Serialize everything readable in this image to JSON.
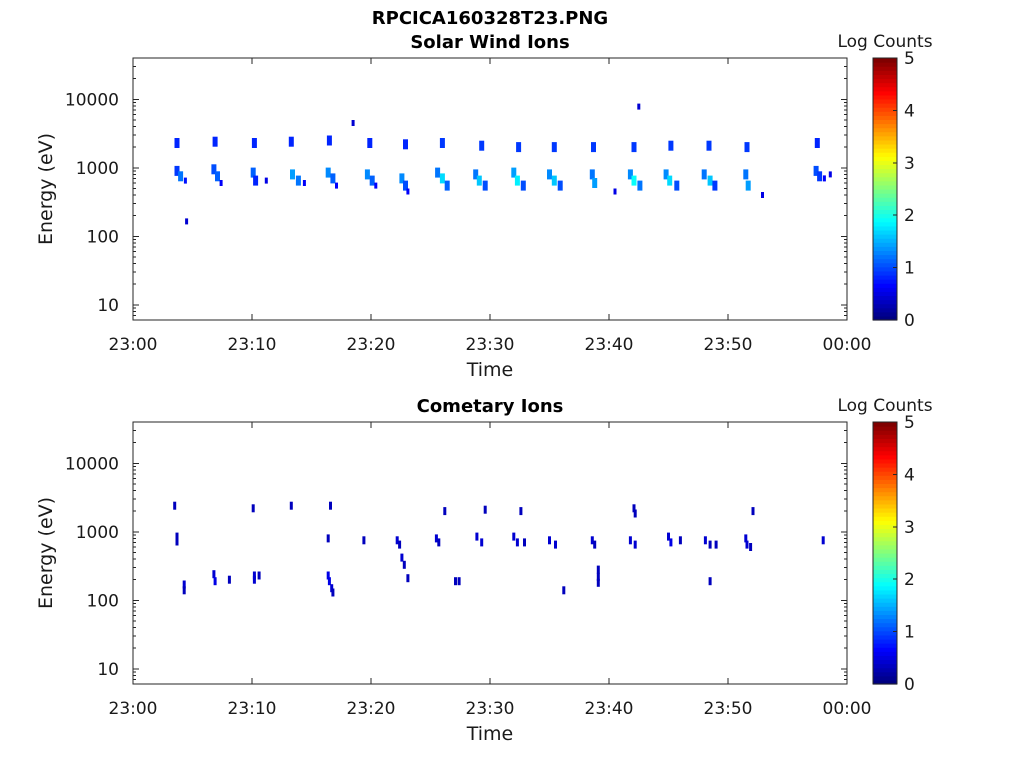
{
  "figure": {
    "title": "RPCICA160328T23.PNG"
  },
  "chart_data": [
    {
      "type": "heatmap",
      "title": "Solar Wind Ions",
      "xlabel": "Time",
      "ylabel": "Energy (eV)",
      "xlim": [
        "23:00",
        "00:00"
      ],
      "x_tick_labels": [
        "23:00",
        "23:10",
        "23:20",
        "23:30",
        "23:40",
        "23:50",
        "00:00"
      ],
      "y_scale": "log",
      "ylim": [
        6,
        40000
      ],
      "y_tick_values": [
        10,
        100,
        1000,
        10000
      ],
      "y_tick_labels": [
        "10",
        "100",
        "1000",
        "10000"
      ],
      "colorbar": {
        "label": "Log Counts",
        "range": [
          0,
          5
        ],
        "tick_labels": [
          "0",
          "1",
          "2",
          "3",
          "4",
          "5"
        ],
        "colormap": "jet"
      },
      "grid": false,
      "points": [
        {
          "t": 3.7,
          "e": 2300,
          "c": 0.8
        },
        {
          "t": 3.7,
          "e": 900,
          "c": 0.9
        },
        {
          "t": 4.0,
          "e": 750,
          "c": 1.2
        },
        {
          "t": 4.4,
          "e": 650,
          "c": 0.7
        },
        {
          "t": 4.5,
          "e": 165,
          "c": 0.4
        },
        {
          "t": 6.9,
          "e": 2400,
          "c": 0.8
        },
        {
          "t": 6.8,
          "e": 950,
          "c": 1.0
        },
        {
          "t": 7.1,
          "e": 750,
          "c": 1.1
        },
        {
          "t": 7.4,
          "e": 600,
          "c": 0.6
        },
        {
          "t": 10.2,
          "e": 2300,
          "c": 0.8
        },
        {
          "t": 10.1,
          "e": 850,
          "c": 1.1
        },
        {
          "t": 10.3,
          "e": 650,
          "c": 0.8
        },
        {
          "t": 11.2,
          "e": 650,
          "c": 0.5
        },
        {
          "t": 13.3,
          "e": 2400,
          "c": 0.8
        },
        {
          "t": 13.4,
          "e": 800,
          "c": 1.4
        },
        {
          "t": 13.9,
          "e": 650,
          "c": 1.2
        },
        {
          "t": 14.4,
          "e": 600,
          "c": 0.6
        },
        {
          "t": 16.5,
          "e": 2500,
          "c": 0.8
        },
        {
          "t": 16.4,
          "e": 850,
          "c": 1.3
        },
        {
          "t": 16.8,
          "e": 700,
          "c": 1.1
        },
        {
          "t": 17.1,
          "e": 550,
          "c": 0.6
        },
        {
          "t": 18.5,
          "e": 4500,
          "c": 0.4
        },
        {
          "t": 19.9,
          "e": 2300,
          "c": 0.8
        },
        {
          "t": 19.7,
          "e": 800,
          "c": 1.3
        },
        {
          "t": 20.1,
          "e": 650,
          "c": 1.1
        },
        {
          "t": 20.4,
          "e": 550,
          "c": 0.6
        },
        {
          "t": 22.9,
          "e": 2200,
          "c": 0.8
        },
        {
          "t": 22.6,
          "e": 700,
          "c": 1.3
        },
        {
          "t": 22.9,
          "e": 550,
          "c": 1.0
        },
        {
          "t": 23.1,
          "e": 450,
          "c": 0.6
        },
        {
          "t": 26.0,
          "e": 2300,
          "c": 0.9
        },
        {
          "t": 25.6,
          "e": 850,
          "c": 1.2
        },
        {
          "t": 26.0,
          "e": 700,
          "c": 1.7
        },
        {
          "t": 26.4,
          "e": 550,
          "c": 1.1
        },
        {
          "t": 29.3,
          "e": 2100,
          "c": 0.9
        },
        {
          "t": 28.8,
          "e": 800,
          "c": 1.2
        },
        {
          "t": 29.1,
          "e": 650,
          "c": 1.6
        },
        {
          "t": 29.6,
          "e": 550,
          "c": 1.0
        },
        {
          "t": 32.4,
          "e": 2000,
          "c": 0.9
        },
        {
          "t": 32.0,
          "e": 850,
          "c": 1.4
        },
        {
          "t": 32.3,
          "e": 650,
          "c": 1.8
        },
        {
          "t": 32.8,
          "e": 550,
          "c": 1.0
        },
        {
          "t": 35.4,
          "e": 2000,
          "c": 0.9
        },
        {
          "t": 35.0,
          "e": 800,
          "c": 1.3
        },
        {
          "t": 35.4,
          "e": 650,
          "c": 1.6
        },
        {
          "t": 35.9,
          "e": 550,
          "c": 1.0
        },
        {
          "t": 38.7,
          "e": 2000,
          "c": 0.9
        },
        {
          "t": 38.6,
          "e": 800,
          "c": 1.2
        },
        {
          "t": 38.8,
          "e": 600,
          "c": 1.4
        },
        {
          "t": 40.5,
          "e": 450,
          "c": 0.5
        },
        {
          "t": 42.1,
          "e": 2000,
          "c": 0.9
        },
        {
          "t": 41.8,
          "e": 800,
          "c": 1.3
        },
        {
          "t": 42.1,
          "e": 650,
          "c": 1.9
        },
        {
          "t": 42.6,
          "e": 550,
          "c": 1.2
        },
        {
          "t": 42.5,
          "e": 7800,
          "c": 0.4
        },
        {
          "t": 45.2,
          "e": 2100,
          "c": 0.9
        },
        {
          "t": 44.8,
          "e": 800,
          "c": 1.3
        },
        {
          "t": 45.1,
          "e": 650,
          "c": 1.7
        },
        {
          "t": 45.7,
          "e": 550,
          "c": 1.0
        },
        {
          "t": 48.4,
          "e": 2100,
          "c": 0.9
        },
        {
          "t": 48.0,
          "e": 800,
          "c": 1.2
        },
        {
          "t": 48.5,
          "e": 650,
          "c": 1.6
        },
        {
          "t": 48.9,
          "e": 550,
          "c": 0.9
        },
        {
          "t": 51.6,
          "e": 2000,
          "c": 0.9
        },
        {
          "t": 51.5,
          "e": 800,
          "c": 1.2
        },
        {
          "t": 51.7,
          "e": 550,
          "c": 1.4
        },
        {
          "t": 52.9,
          "e": 400,
          "c": 0.5
        },
        {
          "t": 57.5,
          "e": 2300,
          "c": 0.8
        },
        {
          "t": 57.4,
          "e": 900,
          "c": 1.0
        },
        {
          "t": 57.7,
          "e": 750,
          "c": 0.9
        },
        {
          "t": 58.1,
          "e": 700,
          "c": 0.6
        },
        {
          "t": 58.6,
          "e": 800,
          "c": 0.5
        }
      ]
    },
    {
      "type": "heatmap",
      "title": "Cometary Ions",
      "xlabel": "Time",
      "ylabel": "Energy (eV)",
      "xlim": [
        "23:00",
        "00:00"
      ],
      "x_tick_labels": [
        "23:00",
        "23:10",
        "23:20",
        "23:30",
        "23:40",
        "23:50",
        "00:00"
      ],
      "y_scale": "log",
      "ylim": [
        6,
        40000
      ],
      "y_tick_values": [
        10,
        100,
        1000,
        10000
      ],
      "y_tick_labels": [
        "10",
        "100",
        "1000",
        "10000"
      ],
      "colorbar": {
        "label": "Log Counts",
        "range": [
          0,
          5
        ],
        "tick_labels": [
          "0",
          "1",
          "2",
          "3",
          "4",
          "5"
        ],
        "colormap": "jet"
      },
      "grid": false,
      "points": [
        {
          "t": 3.5,
          "e": 2400,
          "c": 0.3
        },
        {
          "t": 3.7,
          "e": 850,
          "c": 0.3
        },
        {
          "t": 3.7,
          "e": 720,
          "c": 0.3
        },
        {
          "t": 4.3,
          "e": 170,
          "c": 0.4
        },
        {
          "t": 4.3,
          "e": 140,
          "c": 0.3
        },
        {
          "t": 6.8,
          "e": 240,
          "c": 0.4
        },
        {
          "t": 6.9,
          "e": 190,
          "c": 0.5
        },
        {
          "t": 8.1,
          "e": 200,
          "c": 0.3
        },
        {
          "t": 10.1,
          "e": 2200,
          "c": 0.3
        },
        {
          "t": 10.2,
          "e": 230,
          "c": 0.4
        },
        {
          "t": 10.2,
          "e": 200,
          "c": 0.4
        },
        {
          "t": 10.6,
          "e": 230,
          "c": 0.3
        },
        {
          "t": 13.3,
          "e": 2400,
          "c": 0.3
        },
        {
          "t": 16.4,
          "e": 800,
          "c": 0.3
        },
        {
          "t": 16.6,
          "e": 2400,
          "c": 0.3
        },
        {
          "t": 16.4,
          "e": 230,
          "c": 0.5
        },
        {
          "t": 16.5,
          "e": 190,
          "c": 0.5
        },
        {
          "t": 16.7,
          "e": 150,
          "c": 0.4
        },
        {
          "t": 16.8,
          "e": 130,
          "c": 0.3
        },
        {
          "t": 19.4,
          "e": 750,
          "c": 0.3
        },
        {
          "t": 22.2,
          "e": 750,
          "c": 0.4
        },
        {
          "t": 22.4,
          "e": 650,
          "c": 0.3
        },
        {
          "t": 22.6,
          "e": 420,
          "c": 0.4
        },
        {
          "t": 22.8,
          "e": 330,
          "c": 0.3
        },
        {
          "t": 23.1,
          "e": 210,
          "c": 0.3
        },
        {
          "t": 25.5,
          "e": 800,
          "c": 0.4
        },
        {
          "t": 25.7,
          "e": 700,
          "c": 0.3
        },
        {
          "t": 26.2,
          "e": 2000,
          "c": 0.3
        },
        {
          "t": 27.1,
          "e": 190,
          "c": 0.3
        },
        {
          "t": 27.4,
          "e": 190,
          "c": 0.3
        },
        {
          "t": 28.9,
          "e": 850,
          "c": 0.4
        },
        {
          "t": 29.3,
          "e": 700,
          "c": 0.4
        },
        {
          "t": 29.6,
          "e": 2100,
          "c": 0.3
        },
        {
          "t": 32.0,
          "e": 850,
          "c": 0.4
        },
        {
          "t": 32.3,
          "e": 700,
          "c": 0.4
        },
        {
          "t": 32.6,
          "e": 2000,
          "c": 0.3
        },
        {
          "t": 32.9,
          "e": 700,
          "c": 0.3
        },
        {
          "t": 35.0,
          "e": 750,
          "c": 0.4
        },
        {
          "t": 35.5,
          "e": 650,
          "c": 0.4
        },
        {
          "t": 36.2,
          "e": 140,
          "c": 0.3
        },
        {
          "t": 38.6,
          "e": 750,
          "c": 0.4
        },
        {
          "t": 38.8,
          "e": 650,
          "c": 0.3
        },
        {
          "t": 39.1,
          "e": 280,
          "c": 0.3
        },
        {
          "t": 39.1,
          "e": 220,
          "c": 0.3
        },
        {
          "t": 39.1,
          "e": 180,
          "c": 0.3
        },
        {
          "t": 41.8,
          "e": 750,
          "c": 0.4
        },
        {
          "t": 42.2,
          "e": 650,
          "c": 0.4
        },
        {
          "t": 42.1,
          "e": 2200,
          "c": 0.3
        },
        {
          "t": 42.2,
          "e": 1850,
          "c": 0.3
        },
        {
          "t": 45.0,
          "e": 850,
          "c": 0.4
        },
        {
          "t": 45.2,
          "e": 700,
          "c": 0.5
        },
        {
          "t": 46.0,
          "e": 750,
          "c": 0.3
        },
        {
          "t": 48.1,
          "e": 750,
          "c": 0.4
        },
        {
          "t": 48.5,
          "e": 650,
          "c": 0.3
        },
        {
          "t": 48.5,
          "e": 190,
          "c": 0.3
        },
        {
          "t": 49.0,
          "e": 650,
          "c": 0.3
        },
        {
          "t": 51.5,
          "e": 800,
          "c": 0.4
        },
        {
          "t": 51.6,
          "e": 650,
          "c": 0.4
        },
        {
          "t": 51.9,
          "e": 600,
          "c": 0.3
        },
        {
          "t": 52.1,
          "e": 2000,
          "c": 0.3
        },
        {
          "t": 58.0,
          "e": 750,
          "c": 0.4
        }
      ]
    }
  ]
}
